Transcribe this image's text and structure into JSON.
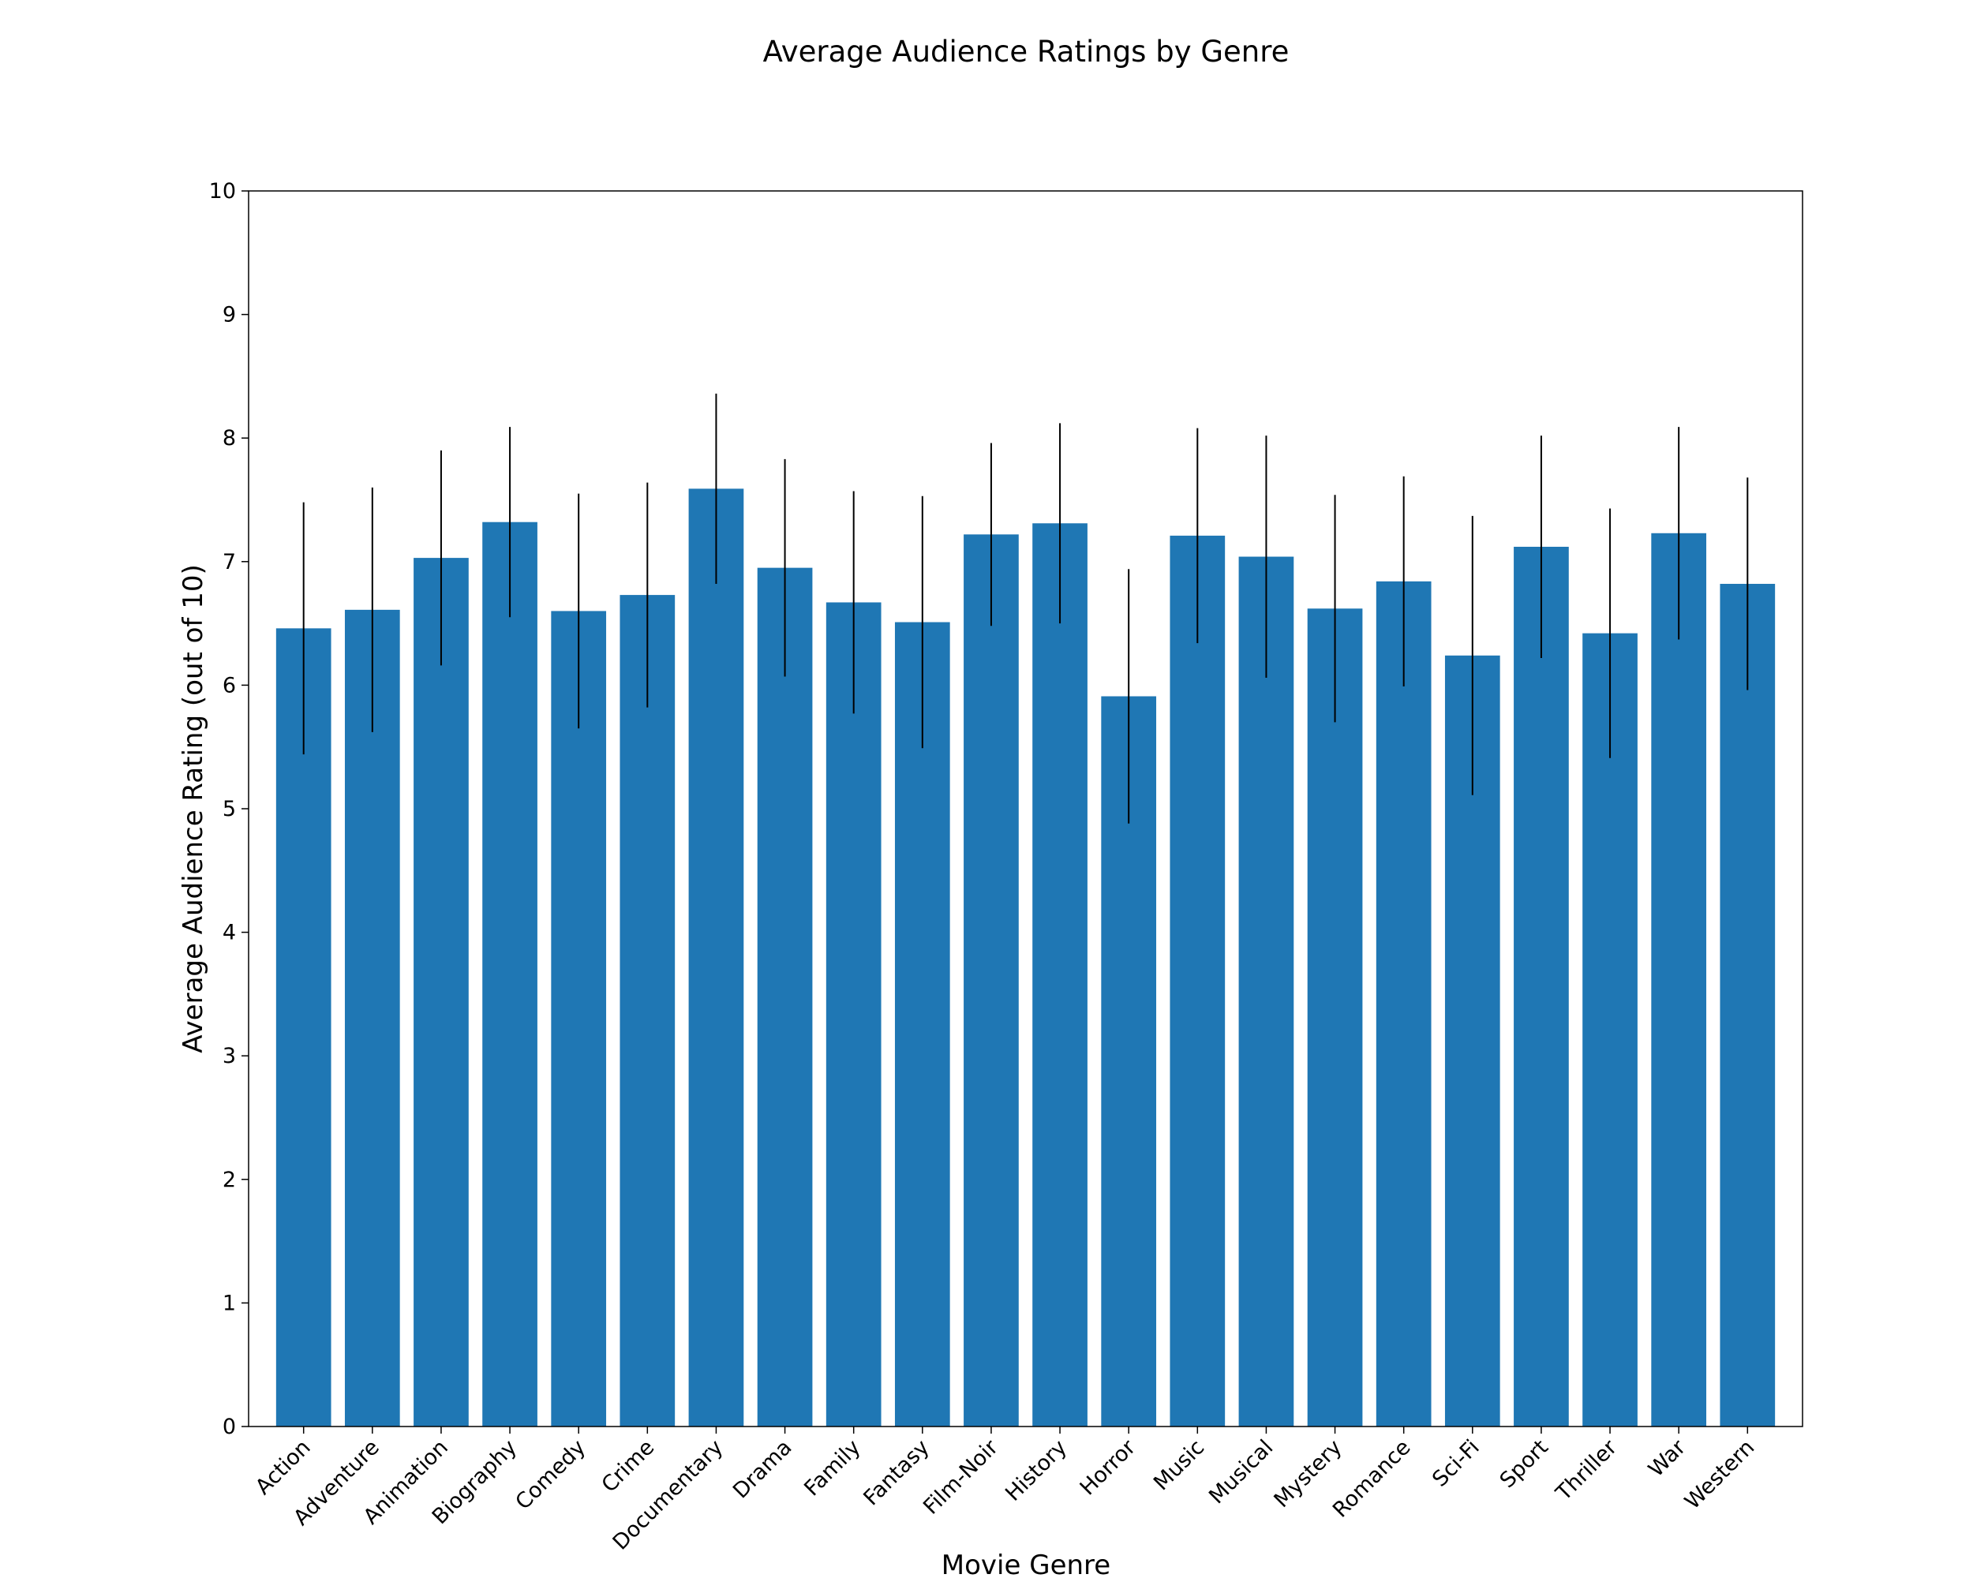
{
  "chart_data": {
    "type": "bar",
    "title": "Average Audience Ratings by Genre",
    "xlabel": "Movie Genre",
    "ylabel": "Average Audience Rating (out of 10)",
    "ylim": [
      0,
      10
    ],
    "yticks": [
      0,
      1,
      2,
      3,
      4,
      5,
      6,
      7,
      8,
      9,
      10
    ],
    "grid": false,
    "colors": {
      "bar": "#1f77b4",
      "error_bar": "#000000"
    },
    "categories": [
      "Action",
      "Adventure",
      "Animation",
      "Biography",
      "Comedy",
      "Crime",
      "Documentary",
      "Drama",
      "Family",
      "Fantasy",
      "Film-Noir",
      "History",
      "Horror",
      "Music",
      "Musical",
      "Mystery",
      "Romance",
      "Sci-Fi",
      "Sport",
      "Thriller",
      "War",
      "Western"
    ],
    "values": [
      6.46,
      6.61,
      7.03,
      7.32,
      6.6,
      6.73,
      7.59,
      6.95,
      6.67,
      6.51,
      7.22,
      7.31,
      5.91,
      7.21,
      7.04,
      6.62,
      6.84,
      6.24,
      7.12,
      6.42,
      7.23,
      6.82
    ],
    "error": [
      1.02,
      0.99,
      0.87,
      0.77,
      0.95,
      0.91,
      0.77,
      0.88,
      0.9,
      1.02,
      0.74,
      0.81,
      1.03,
      0.87,
      0.98,
      0.92,
      0.85,
      1.13,
      0.9,
      1.01,
      0.86,
      0.86
    ]
  }
}
